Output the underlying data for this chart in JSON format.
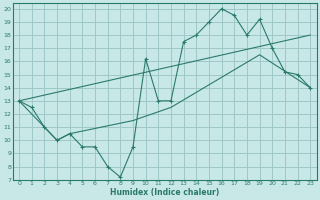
{
  "xlabel": "Humidex (Indice chaleur)",
  "bg_color": "#c8e8e8",
  "grid_color": "#a0c8c8",
  "line_color": "#2a7a6a",
  "xlim": [
    -0.5,
    23.5
  ],
  "ylim": [
    7,
    20.4
  ],
  "xticks": [
    0,
    1,
    2,
    3,
    4,
    5,
    6,
    7,
    8,
    9,
    10,
    11,
    12,
    13,
    14,
    15,
    16,
    17,
    18,
    19,
    20,
    21,
    22,
    23
  ],
  "yticks": [
    7,
    8,
    9,
    10,
    11,
    12,
    13,
    14,
    15,
    16,
    17,
    18,
    19,
    20
  ],
  "line1_x": [
    0,
    1,
    2,
    3,
    4,
    5,
    6,
    7,
    8,
    9,
    10,
    11,
    12,
    13,
    14,
    15,
    16,
    17,
    18,
    19,
    20,
    21,
    22,
    23
  ],
  "line1_y": [
    13,
    12.5,
    11,
    10,
    10.5,
    9.5,
    9.5,
    8,
    7.2,
    9.5,
    16.2,
    13,
    13,
    17.5,
    18,
    19,
    20,
    19.5,
    18,
    19.2,
    17,
    15.2,
    15,
    14
  ],
  "line2_x": [
    0,
    2,
    3,
    4,
    9,
    12,
    19,
    23
  ],
  "line2_y": [
    13,
    11,
    10,
    10.5,
    11.5,
    12.5,
    16.5,
    14
  ],
  "line3_x": [
    0,
    23
  ],
  "line3_y": [
    13,
    18
  ]
}
